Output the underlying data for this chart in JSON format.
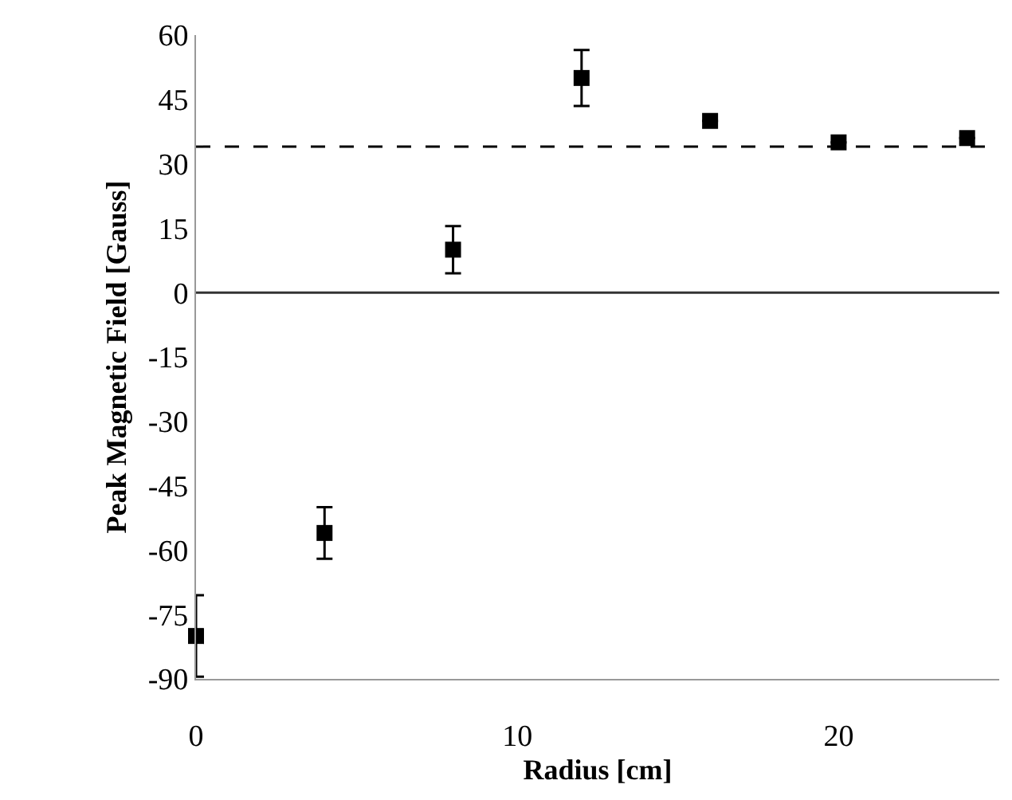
{
  "chart_data": {
    "type": "scatter",
    "xlabel": "Radius [cm]",
    "ylabel": "Peak Magnetic Field [Gauss]",
    "x": [
      0,
      4,
      8,
      12,
      16,
      20,
      24
    ],
    "series": [
      {
        "color": "#000000",
        "values": [
          -80,
          -56,
          10,
          50,
          40,
          35,
          36
        ],
        "errors": [
          9.5,
          6,
          5.5,
          6.5,
          null,
          null,
          null
        ]
      }
    ],
    "marker": "square",
    "xlim": [
      0,
      25
    ],
    "xticks": [
      0,
      10,
      20
    ],
    "ylim": [
      -90,
      60
    ],
    "yticks": [
      60,
      45,
      30,
      15,
      0,
      -15,
      -30,
      -45,
      -60,
      -75,
      -90
    ],
    "ref_lines": [
      {
        "axis": "y",
        "value": 34,
        "color": "#000000",
        "line_style": "dashed"
      },
      {
        "axis": "y",
        "value": 0,
        "color": "#333333",
        "line_style": "solid"
      }
    ]
  }
}
